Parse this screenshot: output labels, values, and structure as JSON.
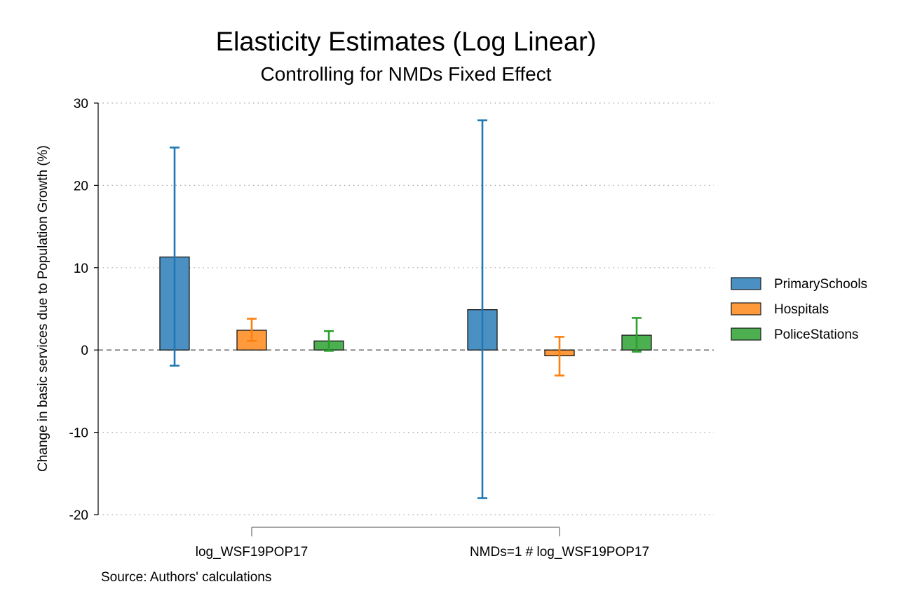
{
  "chart_data": {
    "type": "bar",
    "title": "Elasticity Estimates (Log Linear)",
    "subtitle": "Controlling for NMDs Fixed Effect",
    "ylabel": "Change in basic services due to Population Growth (%)",
    "xlabel": "",
    "ylim": [
      -20,
      30
    ],
    "yticks": [
      -20,
      -10,
      0,
      10,
      20,
      30
    ],
    "grid": true,
    "legend_position": "right",
    "categories": [
      "log_WSF19POP17",
      "NMDs=1 # log_WSF19POP17"
    ],
    "series": [
      {
        "name": "PrimarySchools",
        "color": "#4a90c2",
        "ci_color": "#1f77b4",
        "values": [
          11.3,
          4.9
        ],
        "ci_low": [
          -1.9,
          -18.0
        ],
        "ci_high": [
          24.6,
          27.9
        ]
      },
      {
        "name": "Hospitals",
        "color": "#ff9a3c",
        "ci_color": "#ff7f0e",
        "values": [
          2.4,
          -0.7
        ],
        "ci_low": [
          1.1,
          -3.1
        ],
        "ci_high": [
          3.8,
          1.6
        ]
      },
      {
        "name": "PoliceStations",
        "color": "#4caf50",
        "ci_color": "#2ca02c",
        "values": [
          1.1,
          1.8
        ],
        "ci_low": [
          -0.1,
          -0.2
        ],
        "ci_high": [
          2.3,
          3.9
        ]
      }
    ],
    "note": "Source: Authors' calculations"
  }
}
